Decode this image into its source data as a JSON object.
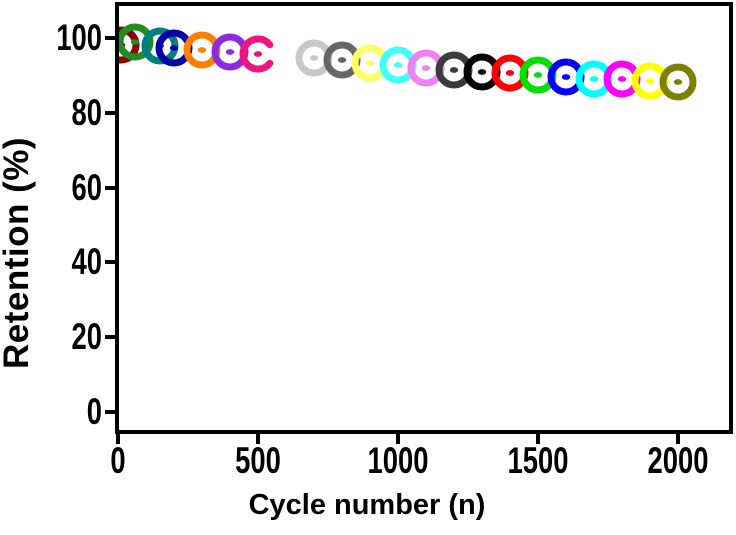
{
  "figure": {
    "background": "#FFFFFF",
    "frame_color": "#000000",
    "text_color": "#000000"
  },
  "chart_data": {
    "type": "scatter",
    "title": "",
    "xlabel": "Cycle number (n)",
    "ylabel": "Retention (%)",
    "x_ticks": [
      0,
      500,
      1000,
      1500,
      2000
    ],
    "y_ticks": [
      0,
      20,
      40,
      60,
      80,
      100
    ],
    "xlim": [
      0,
      2200
    ],
    "ylim": [
      -5.5,
      110
    ],
    "grid": false,
    "legend": false,
    "marker_style": "open-ring-with-center-dot",
    "points": [
      {
        "cycle": 10,
        "retention": 98.2,
        "color": "#8B0000",
        "symbol": "ring"
      },
      {
        "cycle": 60,
        "retention": 98.9,
        "color": "#228B22",
        "symbol": "ring"
      },
      {
        "cycle": 150,
        "retention": 97.9,
        "color": "#008080",
        "symbol": "ring"
      },
      {
        "cycle": 200,
        "retention": 97.3,
        "color": "#0000A8",
        "symbol": "ring"
      },
      {
        "cycle": 300,
        "retention": 96.8,
        "color": "#FF8000",
        "symbol": "ring"
      },
      {
        "cycle": 400,
        "retention": 96.3,
        "color": "#8A2BE2",
        "symbol": "ring"
      },
      {
        "cycle": 500,
        "retention": 95.7,
        "color": "#F1147E",
        "symbol": "open-ring"
      },
      {
        "cycle": 700,
        "retention": 94.7,
        "color": "#C8C8C8",
        "symbol": "ring"
      },
      {
        "cycle": 800,
        "retention": 94.1,
        "color": "#666666",
        "symbol": "ring"
      },
      {
        "cycle": 900,
        "retention": 93.3,
        "color": "#FFFF66",
        "symbol": "ring"
      },
      {
        "cycle": 1000,
        "retention": 92.8,
        "color": "#40FFFF",
        "symbol": "ring"
      },
      {
        "cycle": 1100,
        "retention": 92.0,
        "color": "#EE82EE",
        "symbol": "ring"
      },
      {
        "cycle": 1200,
        "retention": 91.4,
        "color": "#3B3B3B",
        "symbol": "ring"
      },
      {
        "cycle": 1300,
        "retention": 90.9,
        "color": "#000000",
        "symbol": "ring"
      },
      {
        "cycle": 1400,
        "retention": 90.6,
        "color": "#FF0000",
        "symbol": "ring"
      },
      {
        "cycle": 1500,
        "retention": 90.1,
        "color": "#00DF00",
        "symbol": "ring"
      },
      {
        "cycle": 1600,
        "retention": 89.6,
        "color": "#0000FF",
        "symbol": "ring"
      },
      {
        "cycle": 1700,
        "retention": 89.0,
        "color": "#00FFFF",
        "symbol": "ring"
      },
      {
        "cycle": 1800,
        "retention": 89.0,
        "color": "#FF00FF",
        "symbol": "ring"
      },
      {
        "cycle": 1900,
        "retention": 88.5,
        "color": "#FFFF00",
        "symbol": "ring"
      },
      {
        "cycle": 2000,
        "retention": 88.2,
        "color": "#808000",
        "symbol": "ring"
      }
    ]
  }
}
